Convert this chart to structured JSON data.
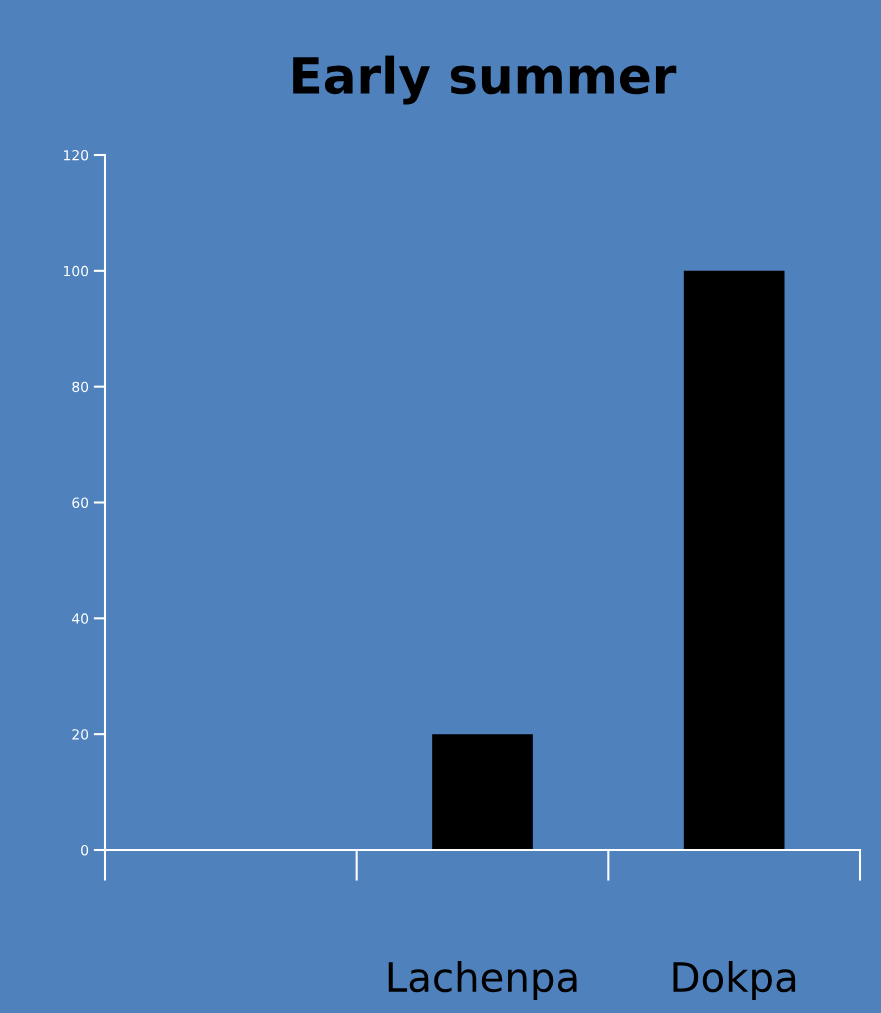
{
  "chart_data": {
    "type": "bar",
    "title": "Early summer",
    "categories": [
      null,
      "Lachenpa",
      "Dokpa"
    ],
    "values": [
      null,
      20,
      100
    ],
    "color": "#000000",
    "ylim": [
      0,
      120
    ],
    "yticks": [
      0,
      20,
      40,
      60,
      80,
      100,
      120
    ],
    "grid": false,
    "legend": false
  }
}
